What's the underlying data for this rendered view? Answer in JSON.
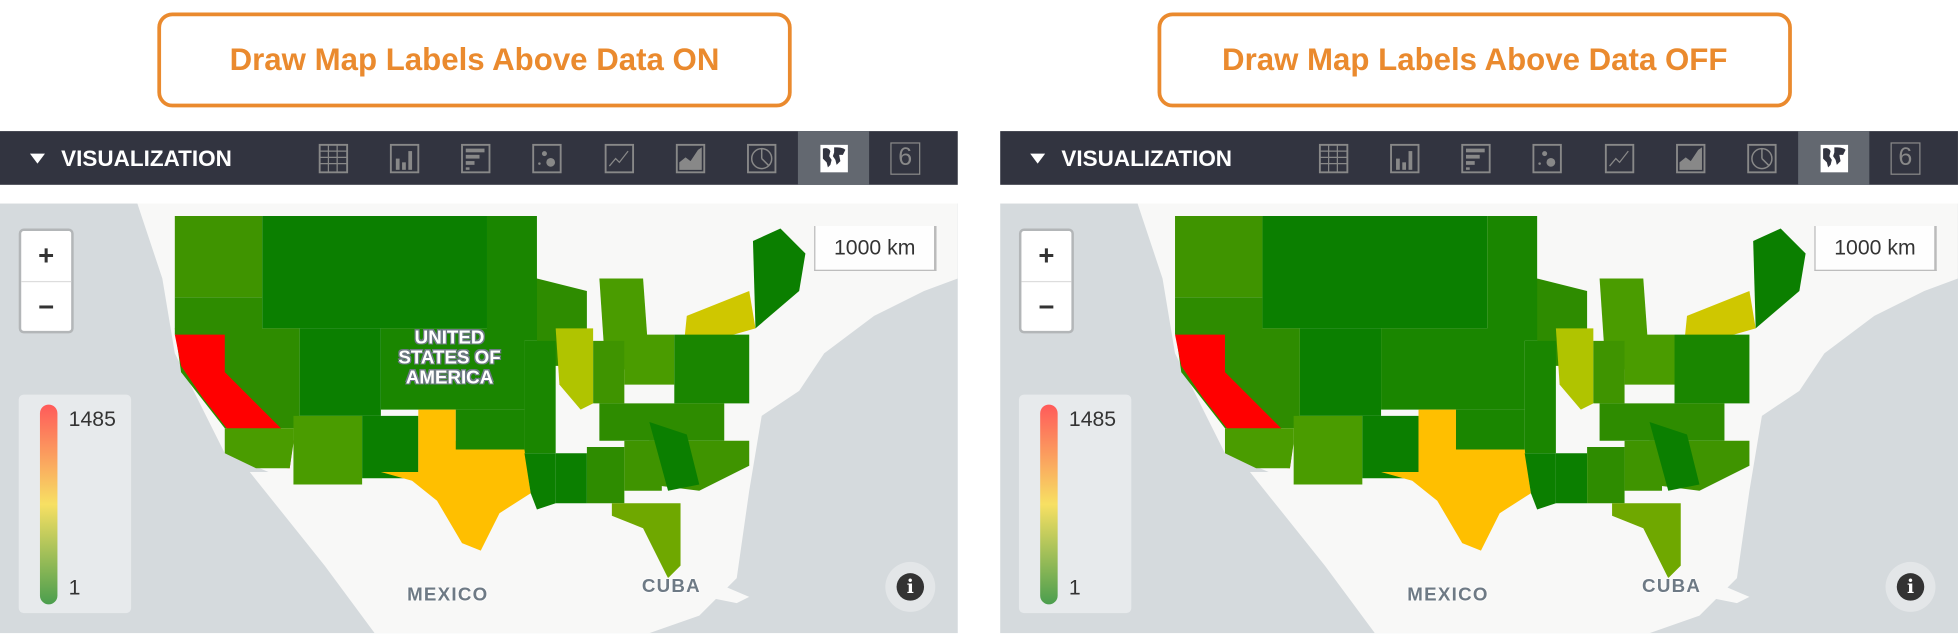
{
  "panels": [
    {
      "title": "Draw Map Labels Above Data ON",
      "show_country_label": true
    },
    {
      "title": "Draw Map Labels Above Data OFF",
      "show_country_label": false
    }
  ],
  "toolbar": {
    "label": "VISUALIZATION",
    "buttons": [
      {
        "icon": "table-icon"
      },
      {
        "icon": "column-chart-icon"
      },
      {
        "icon": "bar-chart-icon"
      },
      {
        "icon": "scatter-icon"
      },
      {
        "icon": "line-chart-icon"
      },
      {
        "icon": "area-chart-icon"
      },
      {
        "icon": "pie-chart-icon"
      },
      {
        "icon": "map-icon",
        "active": true
      },
      {
        "icon": "single-value-icon",
        "text": "6"
      }
    ]
  },
  "map": {
    "zoom_in": "+",
    "zoom_out": "−",
    "scale": "1000 km",
    "legend": {
      "max": "1485",
      "min": "1",
      "colors": [
        "#ff5a5a",
        "#f7e063",
        "#4b9e4e"
      ]
    },
    "labels": {
      "country": "UNITED STATES OF AMERICA",
      "mexico": "MEXICO",
      "cuba": "CUBA"
    },
    "info": "i",
    "colors": {
      "california": "#ff0000",
      "texas": "#ffbf00",
      "new_york": "#cfc700",
      "illinois": "#b0c400",
      "high_green": "#0b7f00",
      "mid_green": "#3f9400",
      "low_green": "#6fa800"
    }
  }
}
